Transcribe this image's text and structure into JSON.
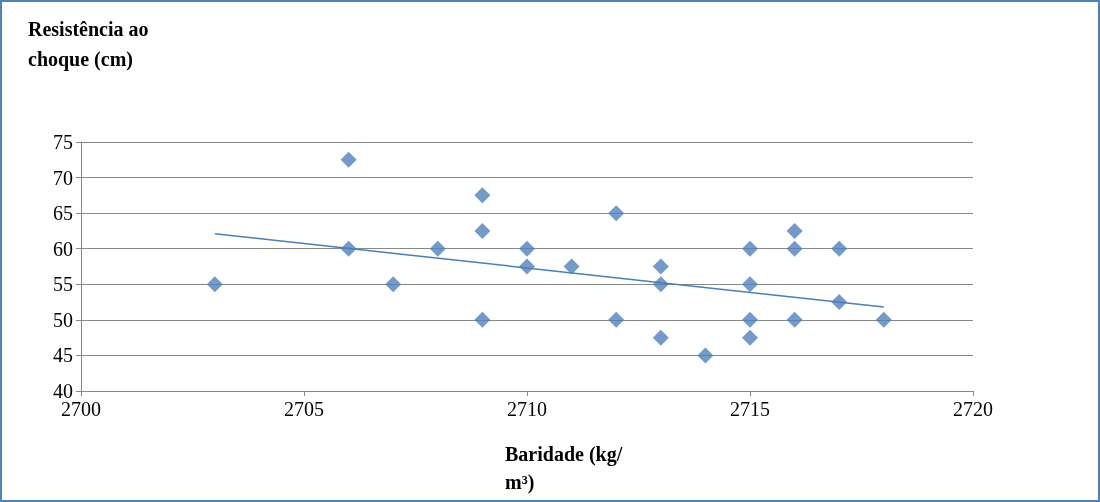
{
  "chart_data": {
    "type": "scatter",
    "xlabel": "Baridade (kg/m³)",
    "ylabel": "Resistência ao choque (cm)",
    "xlim": [
      2700,
      2720
    ],
    "xticks": [
      2700,
      2705,
      2710,
      2715,
      2720
    ],
    "ylim": [
      40,
      75
    ],
    "yticks": [
      40,
      45,
      50,
      55,
      60,
      65,
      70,
      75
    ],
    "grid": "y",
    "series": [
      {
        "marker": "diamond",
        "color": "#4f81bd",
        "x": [
          2703,
          2706,
          2706,
          2707,
          2708,
          2709,
          2709,
          2709,
          2710,
          2710,
          2711,
          2712,
          2712,
          2713,
          2713,
          2713,
          2714,
          2715,
          2715,
          2715,
          2715,
          2716,
          2716,
          2716,
          2717,
          2717,
          2718
        ],
        "values": [
          55,
          72.5,
          60,
          55,
          60,
          67.5,
          62.5,
          50,
          60,
          57.5,
          57.5,
          65,
          50,
          57.5,
          55,
          47.5,
          45,
          60,
          55,
          50,
          47.5,
          62.5,
          60,
          50,
          60,
          52.5,
          50
        ]
      },
      {
        "type": "line",
        "marker": "none",
        "line_style": "solid",
        "color": "#4a7ebb",
        "x": [
          2703,
          2718
        ],
        "values": [
          62.1,
          51.8
        ]
      }
    ]
  }
}
